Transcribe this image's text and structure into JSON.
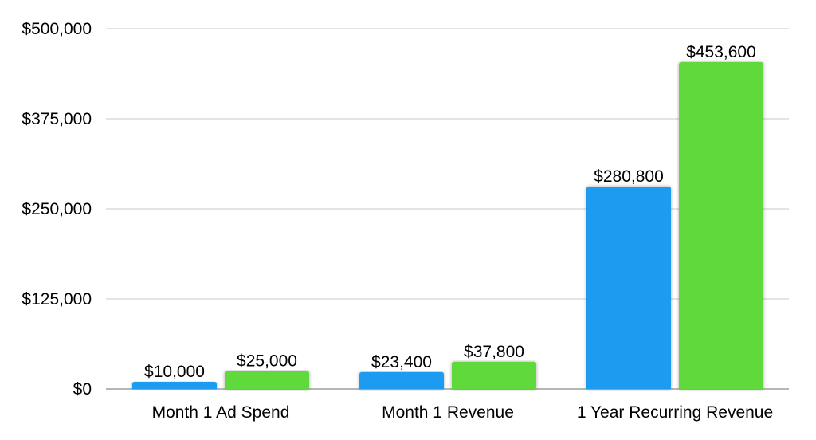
{
  "chart_data": {
    "type": "bar",
    "categories": [
      "Month 1 Ad Spend",
      "Month 1 Revenue",
      "1 Year Recurring Revenue"
    ],
    "series": [
      {
        "values": [
          10000,
          23400,
          280800
        ],
        "color": "#1a9bf0"
      },
      {
        "values": [
          25000,
          37800,
          453600
        ],
        "color": "#5fd93a"
      }
    ],
    "data_labels": [
      [
        "$10,000",
        "$23,400",
        "$280,800"
      ],
      [
        "$25,000",
        "$37,800",
        "$453,600"
      ]
    ],
    "y_ticks": [
      0,
      125000,
      250000,
      375000,
      500000
    ],
    "y_tick_labels": [
      "$0",
      "$125,000",
      "$250,000",
      "$375,000",
      "$500,000"
    ],
    "ylim": [
      0,
      500000
    ],
    "grid": true,
    "legend": "none",
    "title": "",
    "xlabel": "",
    "ylabel": ""
  }
}
